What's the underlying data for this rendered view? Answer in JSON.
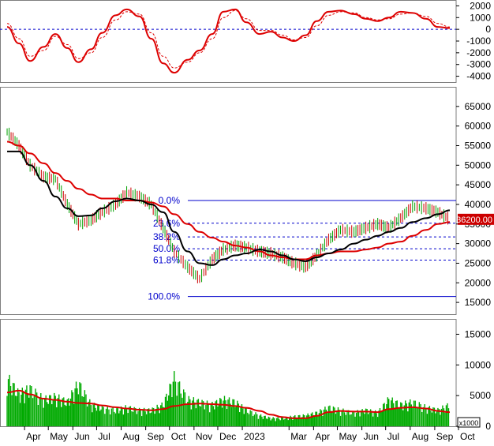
{
  "colors": {
    "frame": "#7f7f7f",
    "grid_blue": "#0000cc",
    "up_bar": "#00a000",
    "down_bar": "#cc0000",
    "ma_red": "#dd0000",
    "ma_black": "#000000",
    "volume_green": "#00aa00",
    "price_tag_bg": "#cc0000",
    "price_tag_text": "#ffffff",
    "fib_label": "#0000cc",
    "axis_text": "#000000"
  },
  "chart_data": [
    {
      "type": "line",
      "panel": "oscillator",
      "ylim": [
        -4500,
        2500
      ],
      "y_ticks": [
        "2000",
        "1000",
        "0",
        "-1000",
        "-2000",
        "-3000",
        "-4000"
      ],
      "y_tick_values": [
        2000,
        1000,
        0,
        -1000,
        -2000,
        -3000,
        -4000
      ],
      "reference_line": 0,
      "x": [
        "2022-03-10",
        "2022-03-25",
        "2022-04-08",
        "2022-04-25",
        "2022-05-10",
        "2022-05-25",
        "2022-06-08",
        "2022-06-24",
        "2022-07-08",
        "2022-07-25",
        "2022-08-08",
        "2022-08-24",
        "2022-09-08",
        "2022-09-23",
        "2022-10-07",
        "2022-10-24",
        "2022-11-08",
        "2022-11-24",
        "2022-12-08",
        "2022-12-23",
        "2023-01-06",
        "2023-01-23",
        "2023-02-06",
        "2023-02-21",
        "2023-03-07",
        "2023-03-22",
        "2023-04-05",
        "2023-04-20",
        "2023-05-05",
        "2023-05-22",
        "2023-06-06",
        "2023-06-21",
        "2023-07-05",
        "2023-07-20",
        "2023-08-04",
        "2023-08-21",
        "2023-09-05",
        "2023-09-20"
      ],
      "series": [
        {
          "style": "solid",
          "values": [
            200,
            -1200,
            -2700,
            -1500,
            -400,
            -1600,
            -2800,
            -1700,
            -300,
            1200,
            1700,
            1100,
            -800,
            -2900,
            -3700,
            -2600,
            -1800,
            -400,
            1500,
            1700,
            600,
            -400,
            -200,
            -700,
            -1000,
            -500,
            700,
            1500,
            1600,
            1300,
            900,
            700,
            1000,
            1500,
            1400,
            900,
            200,
            100
          ]
        },
        {
          "style": "dashed",
          "values": [
            500,
            -800,
            -2300,
            -1800,
            -600,
            -1300,
            -2500,
            -2000,
            -700,
            800,
            1500,
            1300,
            -300,
            -2300,
            -3300,
            -2800,
            -2000,
            -800,
            1000,
            1600,
            900,
            -100,
            -100,
            -500,
            -900,
            -700,
            300,
            1200,
            1500,
            1400,
            1000,
            800,
            900,
            1300,
            1400,
            1100,
            500,
            200
          ]
        }
      ]
    },
    {
      "type": "bar",
      "panel": "price",
      "ylim": [
        12000,
        70000
      ],
      "y_ticks": [
        "65000",
        "60000",
        "55000",
        "50000",
        "45000",
        "40000",
        "35000",
        "30000",
        "25000",
        "20000",
        "15000"
      ],
      "y_tick_values": [
        65000,
        60000,
        55000,
        50000,
        45000,
        40000,
        35000,
        30000,
        25000,
        20000,
        15000
      ],
      "last_price_label": "36200.00",
      "last_price": 36200,
      "x": [
        "2022-03-10",
        "2022-03-25",
        "2022-04-08",
        "2022-04-25",
        "2022-05-10",
        "2022-05-25",
        "2022-06-08",
        "2022-06-24",
        "2022-07-08",
        "2022-07-25",
        "2022-08-08",
        "2022-08-24",
        "2022-09-08",
        "2022-09-23",
        "2022-10-07",
        "2022-10-24",
        "2022-11-08",
        "2022-11-24",
        "2022-12-08",
        "2022-12-23",
        "2023-01-06",
        "2023-01-23",
        "2023-02-06",
        "2023-02-21",
        "2023-03-07",
        "2023-03-22",
        "2023-04-05",
        "2023-04-20",
        "2023-05-05",
        "2023-05-22",
        "2023-06-06",
        "2023-06-21",
        "2023-07-05",
        "2023-07-20",
        "2023-08-04",
        "2023-08-21",
        "2023-09-05",
        "2023-09-20"
      ],
      "series": [
        {
          "name": "close",
          "values": [
            58500,
            55000,
            50000,
            47000,
            46500,
            40000,
            35000,
            36000,
            38000,
            40000,
            43000,
            42000,
            40000,
            34000,
            28000,
            24000,
            21000,
            26000,
            28500,
            29500,
            29000,
            28000,
            27500,
            26500,
            25000,
            24000,
            27000,
            31000,
            33500,
            33000,
            34000,
            35000,
            34000,
            36500,
            39500,
            39000,
            38000,
            36200
          ]
        },
        {
          "name": "ma_black",
          "style": "black",
          "values": [
            53500,
            53500,
            50000,
            46000,
            42000,
            39000,
            37000,
            37200,
            39000,
            40800,
            41500,
            41000,
            40000,
            38000,
            33000,
            28000,
            25000,
            24500,
            26000,
            27000,
            27500,
            28500,
            28000,
            27000,
            26000,
            25500,
            26500,
            27500,
            28500,
            30000,
            31000,
            32000,
            33000,
            34000,
            35500,
            36500,
            37500,
            38500
          ]
        },
        {
          "name": "ma_red",
          "style": "red",
          "values": [
            56000,
            55000,
            53000,
            50500,
            48000,
            46000,
            44000,
            42500,
            41500,
            41500,
            41000,
            41000,
            40500,
            39500,
            37500,
            35000,
            33000,
            31500,
            30500,
            29500,
            29000,
            28000,
            27000,
            26500,
            26000,
            26000,
            27000,
            27500,
            28000,
            28000,
            28500,
            29000,
            30000,
            30500,
            32000,
            33500,
            35000,
            35500
          ]
        }
      ],
      "fibonacci": [
        {
          "label": "0.0%",
          "value": 41000
        },
        {
          "label": "23.6%",
          "value": 35200
        },
        {
          "label": "38.2%",
          "value": 31700
        },
        {
          "label": "50.0%",
          "value": 28700
        },
        {
          "label": "61.8%",
          "value": 25800
        },
        {
          "label": "100.0%",
          "value": 16500
        }
      ]
    },
    {
      "type": "bar",
      "panel": "volume",
      "ylim": [
        0,
        17500
      ],
      "y_ticks": [
        "15000",
        "10000",
        "5000",
        "0"
      ],
      "y_tick_values": [
        15000,
        10000,
        5000,
        0
      ],
      "unit_label": "x1000",
      "x": [
        "2022-03-10",
        "2022-03-25",
        "2022-04-08",
        "2022-04-25",
        "2022-05-10",
        "2022-05-25",
        "2022-06-08",
        "2022-06-24",
        "2022-07-08",
        "2022-07-25",
        "2022-08-08",
        "2022-08-24",
        "2022-09-08",
        "2022-09-23",
        "2022-10-07",
        "2022-10-24",
        "2022-11-08",
        "2022-11-24",
        "2022-12-08",
        "2022-12-23",
        "2023-01-06",
        "2023-01-23",
        "2023-02-06",
        "2023-02-21",
        "2023-03-07",
        "2023-03-22",
        "2023-04-05",
        "2023-04-20",
        "2023-05-05",
        "2023-05-22",
        "2023-06-06",
        "2023-06-21",
        "2023-07-05",
        "2023-07-20",
        "2023-08-04",
        "2023-08-21",
        "2023-09-05",
        "2023-09-20"
      ],
      "series": [
        {
          "name": "volume",
          "values": [
            9000,
            6000,
            7000,
            5000,
            5500,
            4500,
            8000,
            4000,
            3500,
            3000,
            3500,
            3000,
            3000,
            4000,
            9000,
            5000,
            4500,
            4000,
            5000,
            4500,
            3000,
            2000,
            1500,
            1500,
            1800,
            2000,
            2500,
            3500,
            3000,
            2500,
            3000,
            2500,
            5000,
            4000,
            4500,
            3500,
            3000,
            4000
          ]
        },
        {
          "name": "volume_ma",
          "style": "red",
          "values": [
            5500,
            5800,
            5200,
            4500,
            4300,
            4000,
            3800,
            3700,
            3400,
            3100,
            2900,
            2700,
            2600,
            2800,
            3300,
            3600,
            3700,
            3600,
            3500,
            3300,
            3000,
            2500,
            1900,
            1500,
            1300,
            1300,
            1700,
            2300,
            2500,
            2400,
            2400,
            2300,
            2800,
            3000,
            3100,
            2900,
            2500,
            2300
          ]
        }
      ]
    }
  ],
  "x_axis": {
    "labels": [
      "Apr",
      "May",
      "Jun",
      "Jul",
      "Aug",
      "Sep",
      "Oct",
      "Nov",
      "Dec",
      "2023",
      "Mar",
      "Apr",
      "May",
      "Jun",
      "Jul",
      "Aug",
      "Sep",
      "Oct"
    ],
    "label_dates": [
      "2022-04-01",
      "2022-05-01",
      "2022-06-01",
      "2022-07-01",
      "2022-08-01",
      "2022-09-01",
      "2022-10-01",
      "2022-11-01",
      "2022-12-01",
      "2023-01-01",
      "2023-03-01",
      "2023-04-01",
      "2023-05-01",
      "2023-06-01",
      "2023-07-01",
      "2023-08-01",
      "2023-09-01",
      "2023-10-01"
    ],
    "start": "2022-03-01",
    "end": "2023-09-28"
  }
}
